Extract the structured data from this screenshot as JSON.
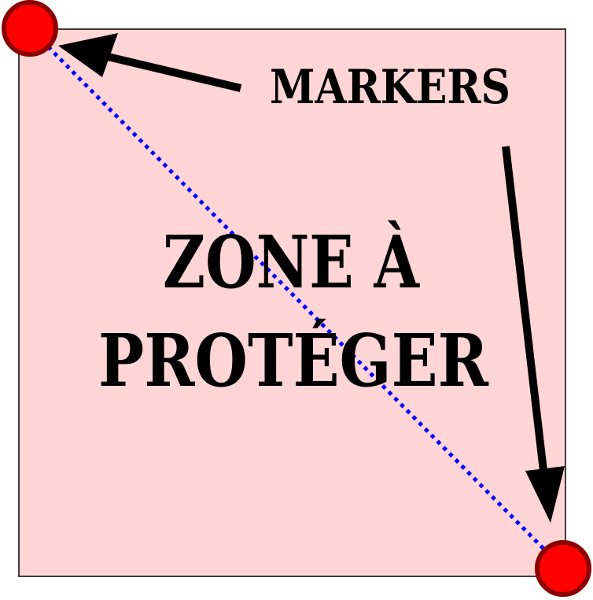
{
  "labels": {
    "markers": "MARKERS",
    "zone_line1": "ZONE À",
    "zone_line2": "PROTÉGER"
  },
  "colors": {
    "zone_fill": "#ffd5d5",
    "zone_border": "#000000",
    "marker_fill": "#ff0000",
    "marker_stroke": "#8b0000",
    "diagonal": "#0000ff",
    "arrow": "#000000",
    "text": "#000000"
  }
}
